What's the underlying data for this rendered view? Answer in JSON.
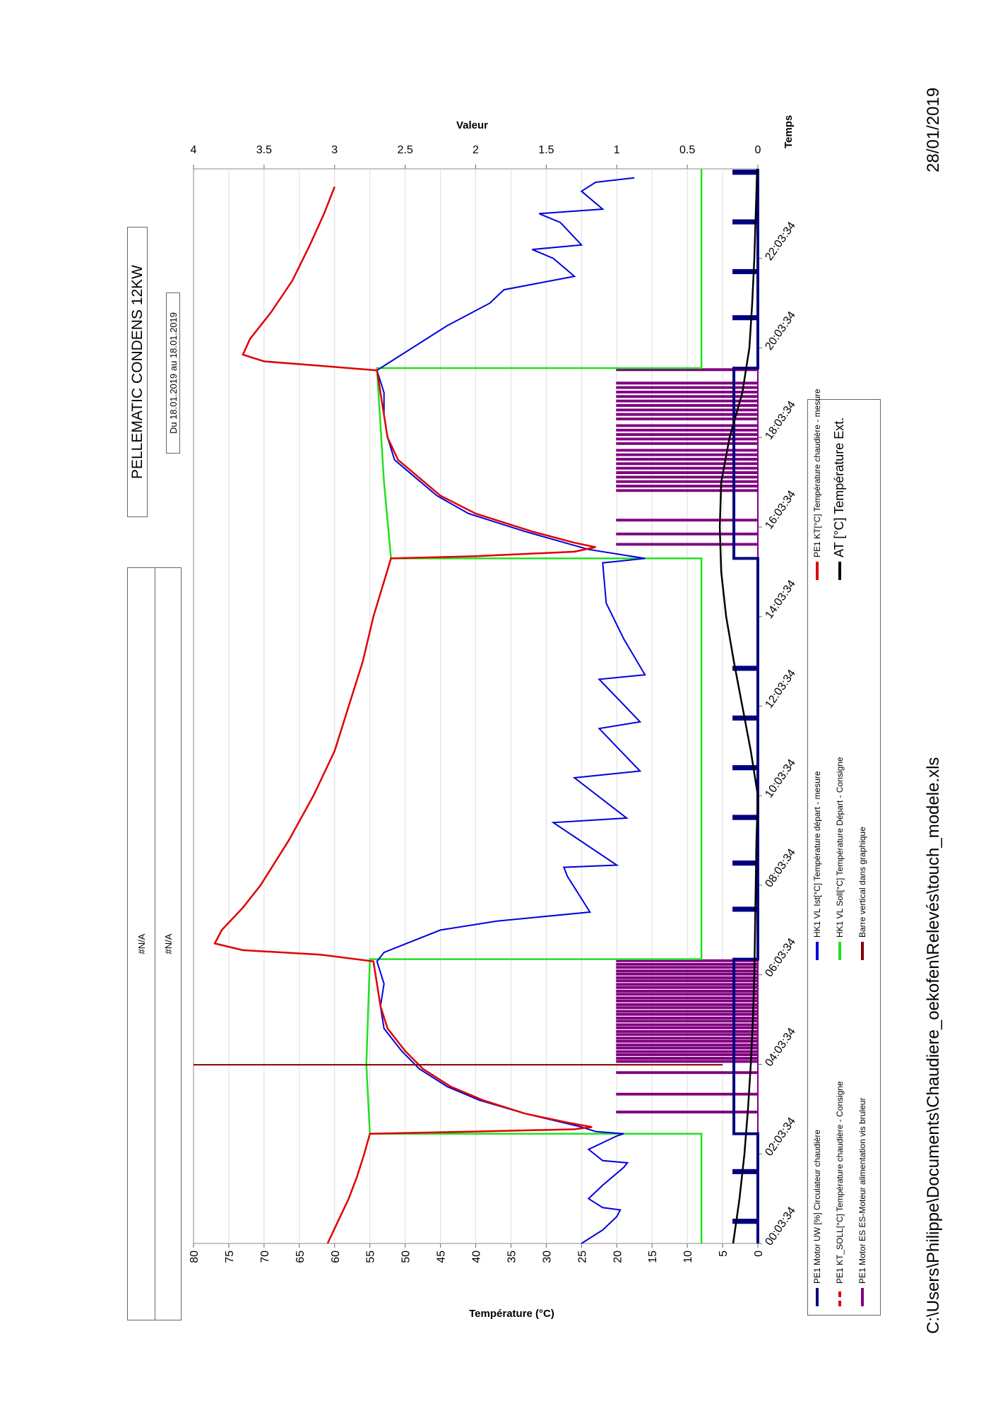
{
  "header": {
    "na_top": "#N/A",
    "na_bottom": "#N/A",
    "title": "PELLEMATIC CONDENS 12KW",
    "date_range": "Du 18.01.2019 au 18.01.2019"
  },
  "footer": {
    "path": "C:\\Users\\Philippe\\Documents\\Chaudiere_oekofen\\Relevés\\touch_modele.xls",
    "date": "28/01/2019"
  },
  "legend": [
    {
      "label": "PE1 Motor UW [%] Circulateur chaudière",
      "color": "#000080",
      "style": "solid"
    },
    {
      "label": "PE1 KT_SOLL[°C] Température chaudière - Consigne",
      "color": "#e00000",
      "style": "dashed"
    },
    {
      "label": "PE1 Motor ES ES-Moteur alimentation vis bruleur",
      "color": "#800080",
      "style": "solid"
    },
    {
      "label": "HK1 VL Ist[°C] Température départ - mesure",
      "color": "#0000e0",
      "style": "solid"
    },
    {
      "label": "HK1 VL Soll[°C] Température Départ - Consigne",
      "color": "#22e022",
      "style": "solid"
    },
    {
      "label": "Barre vertical dans graphique",
      "color": "#800000",
      "style": "solid"
    },
    {
      "label": "PE1 KT[°C] Température chaudière - mesure",
      "color": "#e00000",
      "style": "solid"
    },
    {
      "label": "AT [°C] Température Ext.",
      "color": "#000000",
      "style": "solid"
    }
  ],
  "chart_data": {
    "type": "line",
    "xlabel": "Temps",
    "ylabel": "Température (°C)",
    "y2label": "Valeur",
    "xlim_hours": [
      0,
      24
    ],
    "ylim": [
      0,
      80
    ],
    "y2lim": [
      0,
      4
    ],
    "grid": true,
    "legend_position": "bottom",
    "x_ticks": [
      "00:03:34",
      "02:03:34",
      "04:03:34",
      "06:03:34",
      "08:03:34",
      "10:03:34",
      "12:03:34",
      "14:03:34",
      "16:03:34",
      "18:03:34",
      "20:03:34",
      "22:03:34"
    ],
    "y_ticks": [
      "0",
      "5",
      "10",
      "15",
      "20",
      "25",
      "30",
      "35",
      "40",
      "45",
      "50",
      "55",
      "60",
      "65",
      "70",
      "75",
      "80"
    ],
    "y2_ticks": [
      "0",
      "0.5",
      "1",
      "1.5",
      "2",
      "2.5",
      "3",
      "3.5",
      "4"
    ],
    "series": {
      "kt": {
        "name": "PE1 KT[°C] Température chaudière - mesure",
        "axis": "left",
        "color": "#e00000",
        "points": [
          [
            0,
            61
          ],
          [
            0.5,
            59.5
          ],
          [
            1,
            58
          ],
          [
            1.5,
            56.8
          ],
          [
            2,
            55.8
          ],
          [
            2.45,
            55
          ],
          [
            2.5,
            40
          ],
          [
            2.55,
            26
          ],
          [
            2.6,
            23.5
          ],
          [
            2.7,
            27
          ],
          [
            2.9,
            33
          ],
          [
            3.2,
            39
          ],
          [
            3.5,
            43.5
          ],
          [
            3.9,
            47.5
          ],
          [
            4.3,
            50
          ],
          [
            4.8,
            52.5
          ],
          [
            5.3,
            53.5
          ],
          [
            5.8,
            54
          ],
          [
            6.3,
            54.5
          ],
          [
            6.45,
            62
          ],
          [
            6.55,
            73
          ],
          [
            6.7,
            77
          ],
          [
            7,
            76
          ],
          [
            7.5,
            73
          ],
          [
            8,
            70.5
          ],
          [
            9,
            66.5
          ],
          [
            10,
            63
          ],
          [
            11,
            60
          ],
          [
            12,
            58
          ],
          [
            13,
            56
          ],
          [
            14,
            54.5
          ],
          [
            15.3,
            52
          ],
          [
            15.35,
            40
          ],
          [
            15.45,
            26
          ],
          [
            15.55,
            23
          ],
          [
            15.65,
            26
          ],
          [
            15.9,
            32
          ],
          [
            16.3,
            40
          ],
          [
            16.7,
            45
          ],
          [
            17.1,
            48
          ],
          [
            17.5,
            51
          ],
          [
            18,
            52.5
          ],
          [
            18.5,
            53
          ],
          [
            19,
            53.5
          ],
          [
            19.5,
            54
          ],
          [
            19.6,
            62
          ],
          [
            19.7,
            70
          ],
          [
            19.85,
            73
          ],
          [
            20.2,
            72
          ],
          [
            20.8,
            69
          ],
          [
            21.5,
            66
          ],
          [
            22.3,
            63.5
          ],
          [
            23,
            61.5
          ],
          [
            23.6,
            60
          ]
        ]
      },
      "hk_ist": {
        "name": "HK1 VL Ist[°C] Température départ - mesure",
        "axis": "left",
        "color": "#0000e0",
        "points": [
          [
            0,
            25
          ],
          [
            0.3,
            22
          ],
          [
            0.6,
            20
          ],
          [
            0.75,
            19.5
          ],
          [
            0.8,
            22
          ],
          [
            1,
            24
          ],
          [
            1.3,
            22
          ],
          [
            1.7,
            19
          ],
          [
            1.8,
            18.5
          ],
          [
            1.85,
            22
          ],
          [
            2.1,
            24
          ],
          [
            2.4,
            20
          ],
          [
            2.45,
            19
          ],
          [
            2.5,
            23
          ],
          [
            2.6,
            25
          ],
          [
            2.9,
            33
          ],
          [
            3.2,
            39.5
          ],
          [
            3.5,
            44
          ],
          [
            3.9,
            48
          ],
          [
            4.3,
            50.5
          ],
          [
            4.8,
            53
          ],
          [
            5.3,
            53.5
          ],
          [
            5.8,
            53
          ],
          [
            6.3,
            54
          ],
          [
            6.5,
            53
          ],
          [
            7,
            45
          ],
          [
            7.2,
            37
          ],
          [
            7.4,
            23.8
          ],
          [
            8.2,
            27
          ],
          [
            8.4,
            27.5
          ],
          [
            8.45,
            20
          ],
          [
            9.4,
            29
          ],
          [
            9.5,
            18.6
          ],
          [
            10.4,
            26
          ],
          [
            10.55,
            16.7
          ],
          [
            11.5,
            22.5
          ],
          [
            11.65,
            16.7
          ],
          [
            12.6,
            22.5
          ],
          [
            12.7,
            16
          ],
          [
            13.5,
            19
          ],
          [
            14.3,
            21.5
          ],
          [
            15.2,
            22
          ],
          [
            15.3,
            16
          ],
          [
            15.5,
            24
          ],
          [
            15.9,
            33
          ],
          [
            16.3,
            41
          ],
          [
            16.7,
            45.5
          ],
          [
            17.1,
            48.5
          ],
          [
            17.5,
            51.5
          ],
          [
            18,
            52.5
          ],
          [
            18.5,
            53
          ],
          [
            19,
            53
          ],
          [
            19.5,
            54
          ],
          [
            19.7,
            52
          ],
          [
            20.5,
            44
          ],
          [
            21,
            38
          ],
          [
            21.3,
            36
          ],
          [
            21.6,
            26
          ],
          [
            22,
            29
          ],
          [
            22.2,
            32
          ],
          [
            22.3,
            25
          ],
          [
            22.8,
            28
          ],
          [
            23,
            31
          ],
          [
            23.1,
            22
          ],
          [
            23.5,
            25
          ],
          [
            23.7,
            23
          ],
          [
            23.8,
            17.5
          ]
        ]
      },
      "hk_soll": {
        "name": "HK1 VL Soll[°C] Température Départ - Consigne",
        "axis": "left",
        "color": "#22e022",
        "points": [
          [
            0,
            8
          ],
          [
            2.45,
            8
          ],
          [
            2.45,
            55
          ],
          [
            4,
            55.5
          ],
          [
            6.35,
            55
          ],
          [
            6.35,
            8
          ],
          [
            15.3,
            8
          ],
          [
            15.3,
            52
          ],
          [
            17,
            53
          ],
          [
            19.55,
            54
          ],
          [
            19.55,
            8
          ],
          [
            24,
            8
          ]
        ]
      },
      "at": {
        "name": "AT [°C] Température Ext.",
        "axis": "left",
        "color": "#000000",
        "points": [
          [
            0,
            3.5
          ],
          [
            1,
            2.6
          ],
          [
            2,
            1.9
          ],
          [
            3,
            1.4
          ],
          [
            4,
            1
          ],
          [
            5,
            0.7
          ],
          [
            6,
            0.5
          ],
          [
            7,
            0.4
          ],
          [
            8,
            0.3
          ],
          [
            9,
            0.2
          ],
          [
            10,
            0
          ],
          [
            11,
            1
          ],
          [
            12,
            2.2
          ],
          [
            13,
            3.4
          ],
          [
            14,
            4.5
          ],
          [
            15,
            5.2
          ],
          [
            16,
            5.4
          ],
          [
            17,
            5.2
          ],
          [
            18,
            4
          ],
          [
            19,
            2.2
          ],
          [
            20,
            1.2
          ],
          [
            21,
            0.8
          ],
          [
            22,
            0.5
          ],
          [
            23,
            0.3
          ],
          [
            24,
            0.1
          ]
        ]
      },
      "motor_uw": {
        "name": "PE1 Motor UW [%] Circulateur chaudière",
        "axis": "right",
        "color": "#000080",
        "level": 0.17,
        "pulses": [
          0.47,
          1.58,
          7.44,
          8.47,
          9.49,
          10.6,
          11.71,
          12.82,
          20.65,
          21.68,
          22.79,
          23.9
        ],
        "on_ranges": [
          [
            2.45,
            6.35
          ],
          [
            15.3,
            19.55
          ]
        ],
        "pulse_duration_h": 0.05
      },
      "motor_es": {
        "name": "PE1 Motor ES ES-Moteur alimentation vis bruleur",
        "axis": "right",
        "color": "#800080",
        "level": 1,
        "pulse_duration_h": 0.03,
        "pulses": [
          2.92,
          3.32,
          3.8,
          4.05,
          4.12,
          4.2,
          4.27,
          4.35,
          4.42,
          4.5,
          4.57,
          4.65,
          4.72,
          4.8,
          4.87,
          4.95,
          5.02,
          5.1,
          5.17,
          5.25,
          5.32,
          5.4,
          5.47,
          5.55,
          5.62,
          5.7,
          5.77,
          5.85,
          5.92,
          6.0,
          6.07,
          6.15,
          6.22,
          6.3,
          15.6,
          15.83,
          16.14,
          16.8,
          16.9,
          17.0,
          17.1,
          17.2,
          17.3,
          17.4,
          17.5,
          17.6,
          17.7,
          17.85,
          17.95,
          18.05,
          18.15,
          18.25,
          18.4,
          18.5,
          18.6,
          18.7,
          18.8,
          18.9,
          19.0,
          19.1,
          19.2,
          19.5
        ]
      },
      "bar": {
        "name": "Barre vertical dans graphique",
        "axis": "left",
        "color": "#800000",
        "x_hour": 3.99,
        "from": 5,
        "to": 80
      }
    }
  }
}
